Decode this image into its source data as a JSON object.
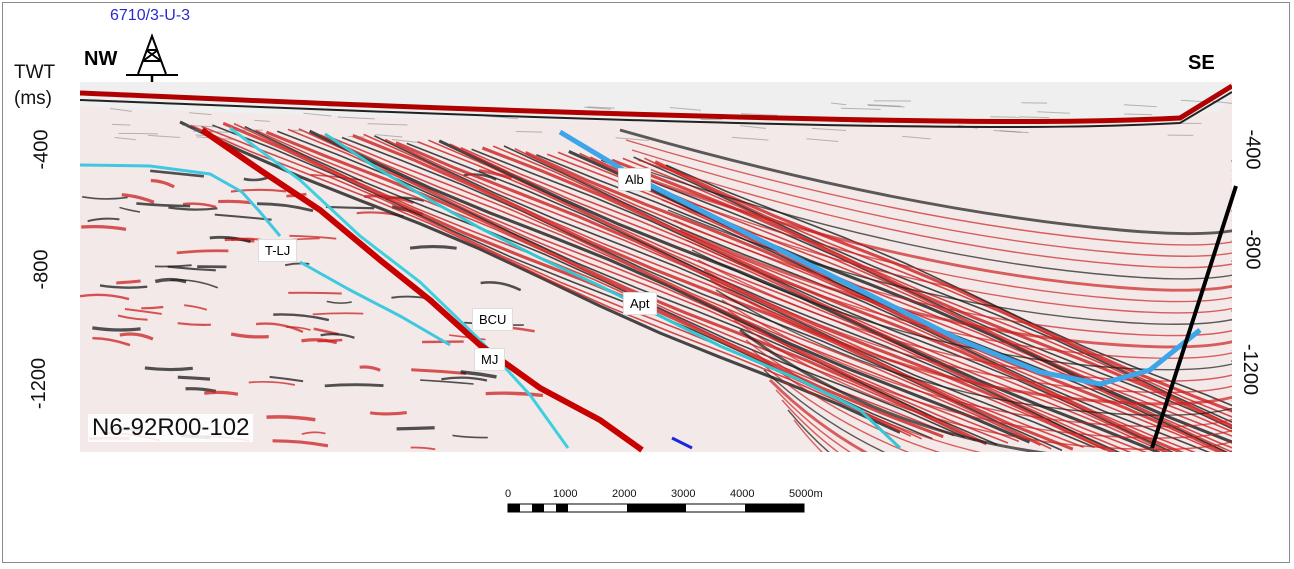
{
  "well": {
    "name": "6710/3-U-3"
  },
  "orientation": {
    "left": "NW",
    "right": "SE"
  },
  "axis": {
    "title_line1": "TWT",
    "title_line2": "(ms)",
    "ticks": [
      "-400",
      "-800",
      "-1200"
    ]
  },
  "right_axis": {
    "ticks": [
      "-400",
      "-800",
      "-1200"
    ]
  },
  "horizons": [
    {
      "label": "Alb",
      "color": "#3da5e8"
    },
    {
      "label": "Apt",
      "color": "#34c7d2"
    },
    {
      "label": "BCU",
      "color": "#c70000"
    },
    {
      "label": "MJ",
      "color": "#3fd0e0"
    },
    {
      "label": "T-LJ",
      "color": "#40c8e0"
    }
  ],
  "line_id": "N6-92R00-102",
  "scale_bar": {
    "ticks": [
      "0",
      "1000",
      "2000",
      "3000",
      "4000",
      "5000m"
    ]
  },
  "colors": {
    "section_red": "#cc1f1f",
    "section_black": "#1a1a1a",
    "fault": "#000000"
  }
}
